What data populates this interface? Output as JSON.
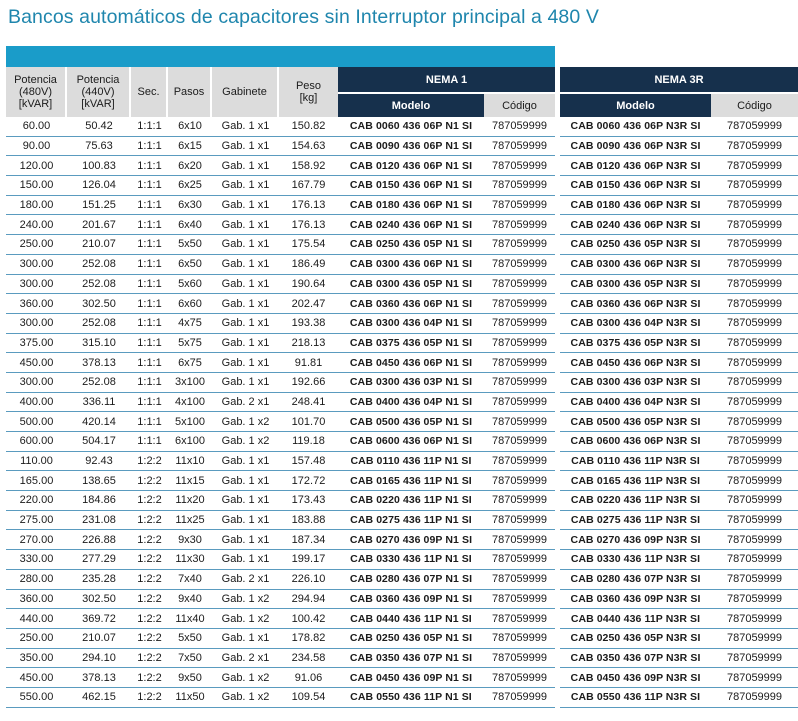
{
  "title": "Bancos automáticos de capacitores sin Interruptor principal a 480 V",
  "columns": {
    "potencia480": [
      "Potencia",
      "(480V)",
      "[kVAR]"
    ],
    "potencia440": [
      "Potencia",
      "(440V)",
      "[kVAR]"
    ],
    "sec": "Sec.",
    "pasos": "Pasos",
    "gabinete": "Gabinete",
    "peso": [
      "Peso",
      "[kg]"
    ],
    "nema1": "NEMA 1",
    "nema3r": "NEMA 3R",
    "modelo": "Modelo",
    "codigo": "Código"
  },
  "rows": [
    [
      "60.00",
      "50.42",
      "1:1:1",
      "6x10",
      "Gab. 1 x1",
      "150.82",
      "CAB 0060 436 06P N1 SI",
      "787059999",
      "CAB 0060 436 06P N3R SI",
      "787059999"
    ],
    [
      "90.00",
      "75.63",
      "1:1:1",
      "6x15",
      "Gab. 1 x1",
      "154.63",
      "CAB 0090 436 06P N1 SI",
      "787059999",
      "CAB 0090 436 06P N3R SI",
      "787059999"
    ],
    [
      "120.00",
      "100.83",
      "1:1:1",
      "6x20",
      "Gab. 1 x1",
      "158.92",
      "CAB 0120 436 06P N1 SI",
      "787059999",
      "CAB 0120 436 06P N3R SI",
      "787059999"
    ],
    [
      "150.00",
      "126.04",
      "1:1:1",
      "6x25",
      "Gab. 1 x1",
      "167.79",
      "CAB 0150 436 06P N1 SI",
      "787059999",
      "CAB 0150 436 06P N3R SI",
      "787059999"
    ],
    [
      "180.00",
      "151.25",
      "1:1:1",
      "6x30",
      "Gab. 1 x1",
      "176.13",
      "CAB 0180 436 06P N1 SI",
      "787059999",
      "CAB 0180 436 06P N3R SI",
      "787059999"
    ],
    [
      "240.00",
      "201.67",
      "1:1:1",
      "6x40",
      "Gab. 1 x1",
      "176.13",
      "CAB 0240 436 06P N1 SI",
      "787059999",
      "CAB 0240 436 06P N3R SI",
      "787059999"
    ],
    [
      "250.00",
      "210.07",
      "1:1:1",
      "5x50",
      "Gab. 1 x1",
      "175.54",
      "CAB 0250 436 05P N1 SI",
      "787059999",
      "CAB 0250 436 05P N3R SI",
      "787059999"
    ],
    [
      "300.00",
      "252.08",
      "1:1:1",
      "6x50",
      "Gab. 1 x1",
      "186.49",
      "CAB 0300 436 06P N1 SI",
      "787059999",
      "CAB 0300 436 06P N3R SI",
      "787059999"
    ],
    [
      "300.00",
      "252.08",
      "1:1:1",
      "5x60",
      "Gab. 1 x1",
      "190.64",
      "CAB 0300 436 05P N1 SI",
      "787059999",
      "CAB 0300 436 05P N3R SI",
      "787059999"
    ],
    [
      "360.00",
      "302.50",
      "1:1:1",
      "6x60",
      "Gab. 1 x1",
      "202.47",
      "CAB 0360 436 06P N1 SI",
      "787059999",
      "CAB 0360 436 06P N3R SI",
      "787059999"
    ],
    [
      "300.00",
      "252.08",
      "1:1:1",
      "4x75",
      "Gab. 1 x1",
      "193.38",
      "CAB 0300 436 04P N1 SI",
      "787059999",
      "CAB 0300 436 04P N3R SI",
      "787059999"
    ],
    [
      "375.00",
      "315.10",
      "1:1:1",
      "5x75",
      "Gab. 1 x1",
      "218.13",
      "CAB 0375 436 05P N1 SI",
      "787059999",
      "CAB 0375 436 05P N3R SI",
      "787059999"
    ],
    [
      "450.00",
      "378.13",
      "1:1:1",
      "6x75",
      "Gab. 1 x1",
      "91.81",
      "CAB 0450 436 06P N1 SI",
      "787059999",
      "CAB 0450 436 06P N3R SI",
      "787059999"
    ],
    [
      "300.00",
      "252.08",
      "1:1:1",
      "3x100",
      "Gab. 1 x1",
      "192.66",
      "CAB 0300 436 03P N1 SI",
      "787059999",
      "CAB 0300 436 03P N3R SI",
      "787059999"
    ],
    [
      "400.00",
      "336.11",
      "1:1:1",
      "4x100",
      "Gab. 2 x1",
      "248.41",
      "CAB 0400 436 04P N1 SI",
      "787059999",
      "CAB 0400 436 04P N3R SI",
      "787059999"
    ],
    [
      "500.00",
      "420.14",
      "1:1:1",
      "5x100",
      "Gab. 1 x2",
      "101.70",
      "CAB 0500 436 05P N1 SI",
      "787059999",
      "CAB 0500 436 05P N3R SI",
      "787059999"
    ],
    [
      "600.00",
      "504.17",
      "1:1:1",
      "6x100",
      "Gab. 1 x2",
      "119.18",
      "CAB 0600 436 06P N1 SI",
      "787059999",
      "CAB 0600 436 06P N3R SI",
      "787059999"
    ],
    [
      "110.00",
      "92.43",
      "1:2:2",
      "11x10",
      "Gab. 1 x1",
      "157.48",
      "CAB 0110 436 11P N1 SI",
      "787059999",
      "CAB 0110 436 11P N3R SI",
      "787059999"
    ],
    [
      "165.00",
      "138.65",
      "1:2:2",
      "11x15",
      "Gab. 1 x1",
      "172.72",
      "CAB 0165 436 11P N1 SI",
      "787059999",
      "CAB 0165 436 11P N3R SI",
      "787059999"
    ],
    [
      "220.00",
      "184.86",
      "1:2:2",
      "11x20",
      "Gab. 1 x1",
      "173.43",
      "CAB 0220 436 11P N1 SI",
      "787059999",
      "CAB 0220 436 11P N3R SI",
      "787059999"
    ],
    [
      "275.00",
      "231.08",
      "1:2:2",
      "11x25",
      "Gab. 1 x1",
      "183.88",
      "CAB 0275 436 11P N1 SI",
      "787059999",
      "CAB 0275 436 11P N3R SI",
      "787059999"
    ],
    [
      "270.00",
      "226.88",
      "1:2:2",
      "9x30",
      "Gab. 1 x1",
      "187.34",
      "CAB 0270 436 09P N1 SI",
      "787059999",
      "CAB 0270 436 09P N3R SI",
      "787059999"
    ],
    [
      "330.00",
      "277.29",
      "1:2:2",
      "11x30",
      "Gab. 1 x1",
      "199.17",
      "CAB 0330 436 11P N1 SI",
      "787059999",
      "CAB 0330 436 11P N3R SI",
      "787059999"
    ],
    [
      "280.00",
      "235.28",
      "1:2:2",
      "7x40",
      "Gab. 2 x1",
      "226.10",
      "CAB 0280 436 07P N1 SI",
      "787059999",
      "CAB 0280 436 07P N3R SI",
      "787059999"
    ],
    [
      "360.00",
      "302.50",
      "1:2:2",
      "9x40",
      "Gab. 1 x2",
      "294.94",
      "CAB 0360 436 09P N1 SI",
      "787059999",
      "CAB 0360 436 09P N3R SI",
      "787059999"
    ],
    [
      "440.00",
      "369.72",
      "1:2:2",
      "11x40",
      "Gab. 1 x2",
      "100.42",
      "CAB 0440 436 11P N1 SI",
      "787059999",
      "CAB 0440 436 11P N3R SI",
      "787059999"
    ],
    [
      "250.00",
      "210.07",
      "1:2:2",
      "5x50",
      "Gab. 1 x1",
      "178.82",
      "CAB 0250 436 05P N1 SI",
      "787059999",
      "CAB 0250 436 05P N3R SI",
      "787059999"
    ],
    [
      "350.00",
      "294.10",
      "1:2:2",
      "7x50",
      "Gab. 2 x1",
      "234.58",
      "CAB 0350 436 07P N1 SI",
      "787059999",
      "CAB 0350 436 07P N3R SI",
      "787059999"
    ],
    [
      "450.00",
      "378.13",
      "1:2:2",
      "9x50",
      "Gab. 1 x2",
      "91.06",
      "CAB 0450 436 09P N1 SI",
      "787059999",
      "CAB 0450 436 09P N3R SI",
      "787059999"
    ],
    [
      "550.00",
      "462.15",
      "1:2:2",
      "11x50",
      "Gab. 1 x2",
      "109.54",
      "CAB 0550 436 11P N1 SI",
      "787059999",
      "CAB 0550 436 11P N3R SI",
      "787059999"
    ]
  ]
}
